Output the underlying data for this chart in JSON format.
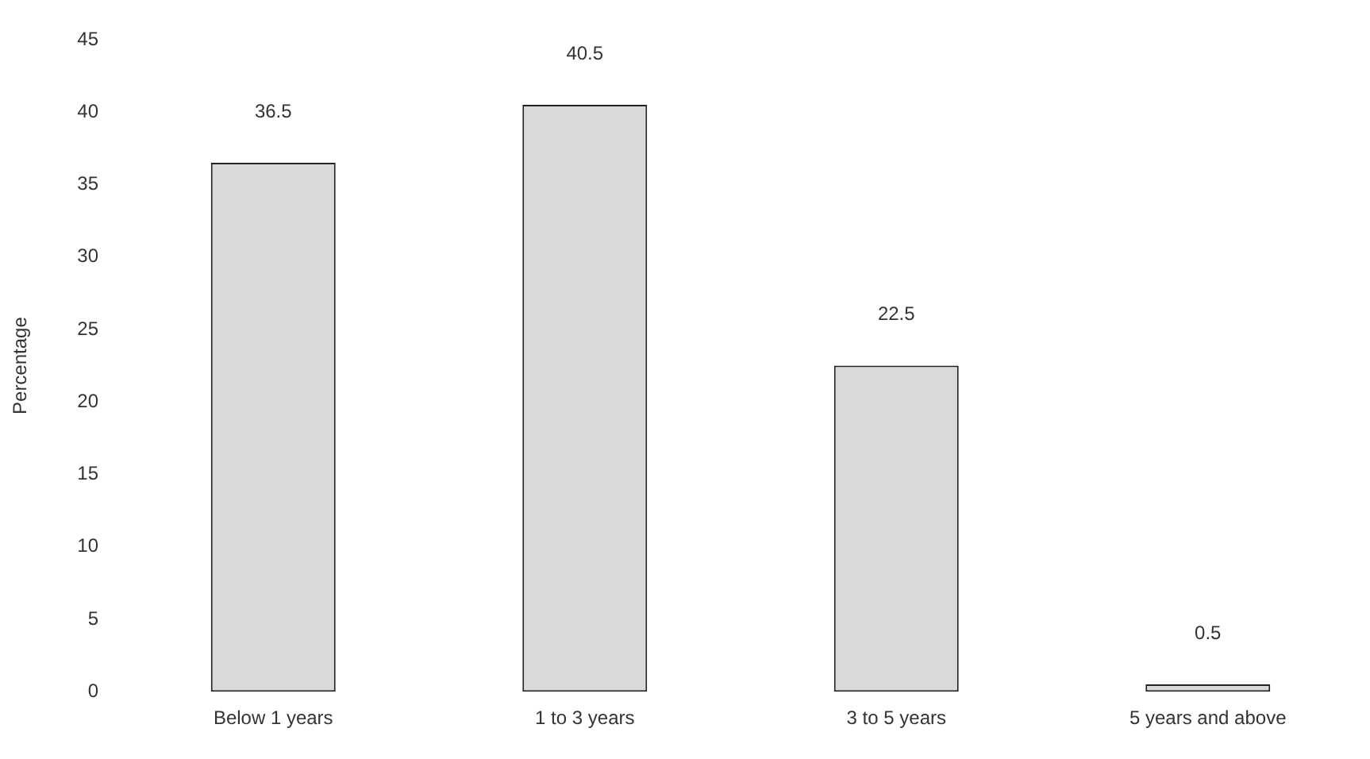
{
  "chart_data": {
    "type": "bar",
    "ylabel": "Percentage",
    "categories": [
      "Below 1 years",
      "1 to 3 years",
      "3 to 5 years",
      "5 years and above"
    ],
    "values": [
      36.5,
      40.5,
      22.5,
      0.5
    ],
    "color": "#d9d9d9",
    "ylim": [
      0,
      45
    ],
    "yticks": [
      0,
      5,
      10,
      15,
      20,
      25,
      30,
      35,
      40,
      45
    ],
    "data_labels": true
  }
}
